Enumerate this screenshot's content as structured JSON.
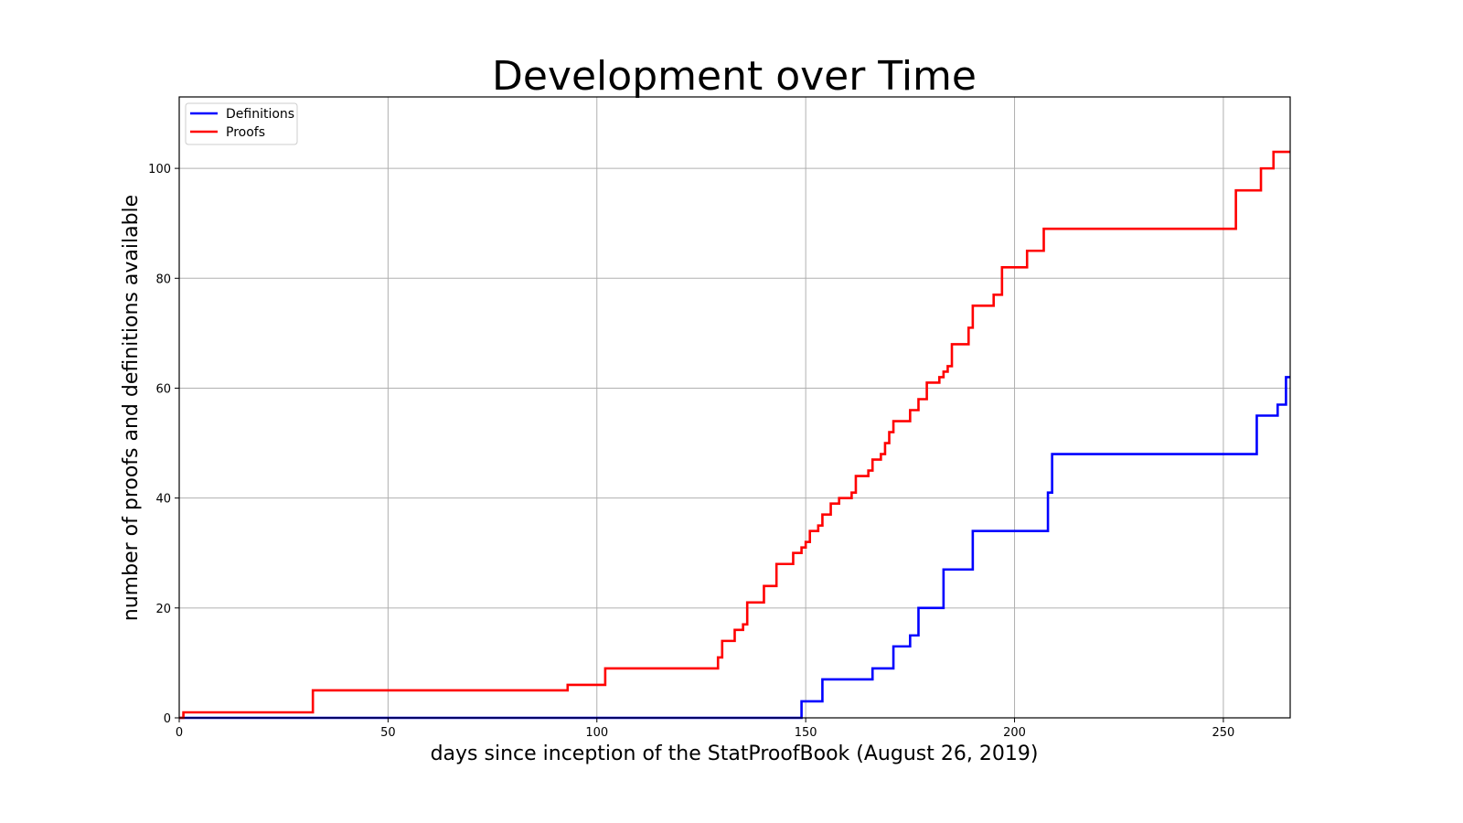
{
  "chart_data": {
    "type": "line",
    "step": true,
    "title": "Development over Time",
    "xlabel": "days since inception of the StatProofBook (August 26, 2019)",
    "ylabel": "number of proofs and definitions available",
    "xlim": [
      0,
      266
    ],
    "ylim": [
      0,
      113
    ],
    "xticks": [
      0,
      50,
      100,
      150,
      200,
      250
    ],
    "yticks": [
      0,
      20,
      40,
      60,
      80,
      100
    ],
    "grid": true,
    "legend_position": "top-left",
    "series": [
      {
        "name": "Definitions",
        "color": "#0000ff",
        "x": [
          0,
          149,
          154,
          166,
          171,
          175,
          177,
          183,
          190,
          208,
          209,
          258,
          263,
          265,
          266
        ],
        "y": [
          0,
          3,
          7,
          9,
          13,
          15,
          20,
          27,
          34,
          41,
          48,
          55,
          57,
          62,
          62
        ]
      },
      {
        "name": "Proofs",
        "color": "#ff0000",
        "x": [
          0,
          1,
          32,
          93,
          102,
          129,
          130,
          133,
          135,
          136,
          140,
          143,
          147,
          149,
          150,
          151,
          153,
          154,
          156,
          158,
          161,
          162,
          165,
          166,
          168,
          169,
          170,
          171,
          175,
          177,
          179,
          182,
          183,
          184,
          185,
          189,
          190,
          195,
          197,
          203,
          207,
          253,
          259,
          262,
          266
        ],
        "y": [
          0,
          1,
          5,
          6,
          9,
          11,
          14,
          16,
          17,
          21,
          24,
          28,
          30,
          31,
          32,
          34,
          35,
          37,
          39,
          40,
          41,
          44,
          45,
          47,
          48,
          50,
          52,
          54,
          56,
          58,
          61,
          62,
          63,
          64,
          68,
          71,
          75,
          77,
          82,
          85,
          89,
          96,
          100,
          103,
          103
        ]
      }
    ]
  }
}
